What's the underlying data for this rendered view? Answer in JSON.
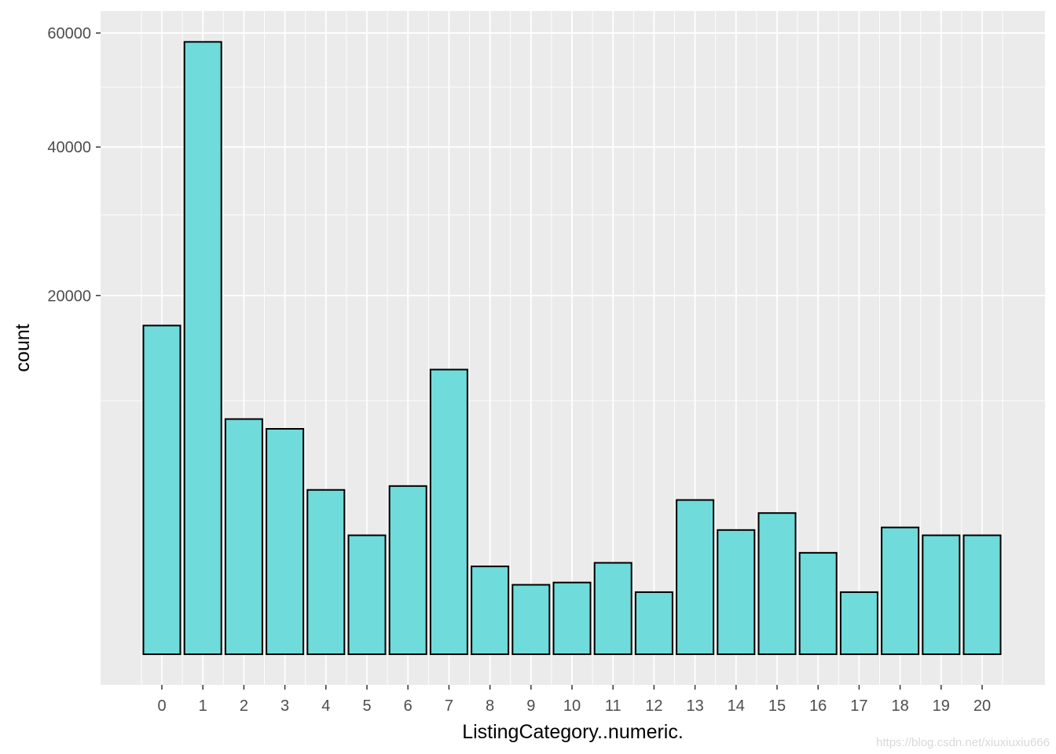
{
  "chart_data": {
    "type": "bar",
    "categories": [
      "0",
      "1",
      "2",
      "3",
      "4",
      "5",
      "6",
      "7",
      "8",
      "9",
      "10",
      "11",
      "12",
      "13",
      "14",
      "15",
      "16",
      "17",
      "18",
      "19",
      "20"
    ],
    "values": [
      16800,
      58300,
      8600,
      7900,
      4200,
      2200,
      4400,
      12600,
      1200,
      750,
      800,
      1300,
      600,
      3700,
      2400,
      3100,
      1600,
      600,
      2500,
      2200,
      2200
    ],
    "xlabel": "ListingCategory..numeric.",
    "ylabel": "count",
    "y_ticks": [
      20000,
      40000,
      60000
    ],
    "y_tick_labels": [
      "20000",
      "40000",
      "60000"
    ],
    "y_scale": "sqrt",
    "ylim": [
      0,
      62500
    ],
    "grid": true,
    "colors": {
      "panel_background": "#ebebeb",
      "grid": "#ffffff",
      "bar_fill": "#6fdbdb",
      "bar_outline": "#000000"
    }
  },
  "watermark": "https://blog.csdn.net/xiuxiuxiu666"
}
